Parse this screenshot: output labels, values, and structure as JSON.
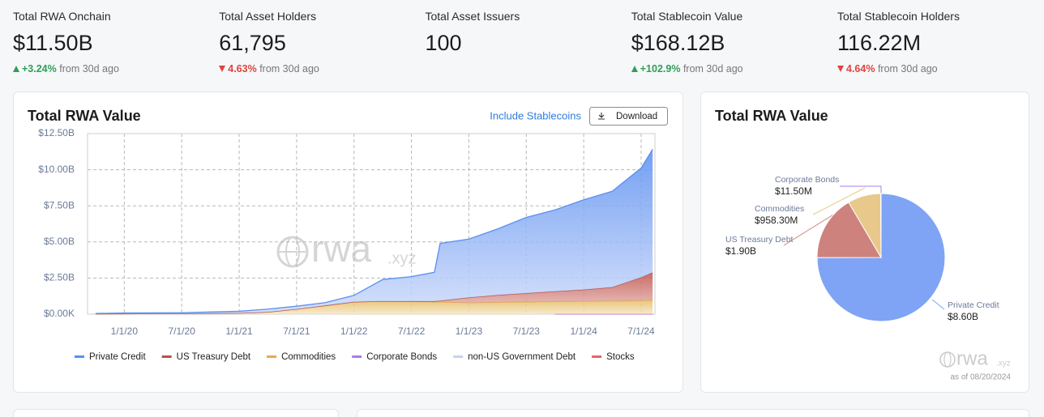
{
  "stats": [
    {
      "label": "Total RWA Onchain",
      "value": "$11.50B",
      "change": "+3.24%",
      "direction": "up",
      "note": "from 30d ago"
    },
    {
      "label": "Total Asset Holders",
      "value": "61,795",
      "change": "4.63%",
      "direction": "down",
      "note": "from 30d ago"
    },
    {
      "label": "Total Asset Issuers",
      "value": "100"
    },
    {
      "label": "Total Stablecoin Value",
      "value": "$168.12B",
      "change": "+102.9%",
      "direction": "up",
      "note": "from 30d ago"
    },
    {
      "label": "Total Stablecoin Holders",
      "value": "116.22M",
      "change": "4.64%",
      "direction": "down",
      "note": "from 30d ago"
    }
  ],
  "controls": {
    "toggle": "Include Stablecoins",
    "download": "Download"
  },
  "watermark": {
    "main": "rwa",
    "sub": ".xyz"
  },
  "as_of": "as of 08/20/2024",
  "chart_data": [
    {
      "type": "area",
      "stacked": true,
      "title": "Total RWA Value",
      "grid": true,
      "x": [
        2019.75,
        2020,
        2020.25,
        2020.5,
        2020.75,
        2021,
        2021.25,
        2021.5,
        2021.75,
        2022,
        2022.25,
        2022.5,
        2022.7,
        2022.75,
        2023,
        2023.25,
        2023.5,
        2023.75,
        2024,
        2024.25,
        2024.5,
        2024.6
      ],
      "xlim": [
        2019.68,
        2024.62
      ],
      "xticks": [
        {
          "value": 2020,
          "label": "1/1/20"
        },
        {
          "value": 2020.5,
          "label": "7/1/20"
        },
        {
          "value": 2021,
          "label": "1/1/21"
        },
        {
          "value": 2021.5,
          "label": "7/1/21"
        },
        {
          "value": 2022,
          "label": "1/1/22"
        },
        {
          "value": 2022.5,
          "label": "7/1/22"
        },
        {
          "value": 2023,
          "label": "1/1/23"
        },
        {
          "value": 2023.5,
          "label": "7/1/23"
        },
        {
          "value": 2024,
          "label": "1/1/24"
        },
        {
          "value": 2024.5,
          "label": "7/1/24"
        }
      ],
      "ylim": [
        0,
        12.5
      ],
      "yticks": [
        {
          "value": 0,
          "label": "$0.00K"
        },
        {
          "value": 2.5,
          "label": "$2.50B"
        },
        {
          "value": 5,
          "label": "$5.00B"
        },
        {
          "value": 7.5,
          "label": "$7.50B"
        },
        {
          "value": 10,
          "label": "$10.00B"
        },
        {
          "value": 12.5,
          "label": "$12.50B"
        }
      ],
      "series": [
        {
          "name": "Private Credit",
          "color": "#5b8ff0",
          "values": [
            0.03,
            0.05,
            0.05,
            0.05,
            0.09,
            0.12,
            0.2,
            0.2,
            0.2,
            0.45,
            1.5,
            1.7,
            2.0,
            3.97,
            4.05,
            4.58,
            5.25,
            5.64,
            6.22,
            6.65,
            7.57,
            8.54
          ]
        },
        {
          "name": "US Treasury Debt",
          "color": "#b9504a",
          "values": [
            0,
            0,
            0,
            0,
            0,
            0,
            0,
            0,
            0,
            0,
            0,
            0.02,
            0.05,
            0.08,
            0.35,
            0.5,
            0.6,
            0.7,
            0.8,
            0.95,
            1.6,
            1.9
          ]
        },
        {
          "name": "Commodities",
          "color": "#dfae4f",
          "values": [
            0.02,
            0.03,
            0.04,
            0.05,
            0.06,
            0.08,
            0.15,
            0.35,
            0.6,
            0.85,
            0.9,
            0.88,
            0.85,
            0.85,
            0.8,
            0.82,
            0.85,
            0.86,
            0.88,
            0.9,
            0.93,
            0.96
          ]
        },
        {
          "name": "Corporate Bonds",
          "color": "#a97de8",
          "values": [
            null,
            null,
            null,
            null,
            null,
            null,
            null,
            null,
            null,
            null,
            null,
            null,
            null,
            null,
            null,
            null,
            null,
            0.0115,
            0.0115,
            0.0115,
            0.0115,
            0.0115
          ]
        },
        {
          "name": "non-US Government Debt",
          "color": "#c6d3ee",
          "values": [
            null,
            null,
            null,
            null,
            null,
            null,
            null,
            null,
            null,
            null,
            null,
            null,
            null,
            null,
            null,
            null,
            null,
            null,
            null,
            null,
            null,
            null
          ]
        },
        {
          "name": "Stocks",
          "color": "#e96363",
          "values": [
            null,
            null,
            null,
            null,
            null,
            null,
            null,
            null,
            null,
            null,
            null,
            null,
            null,
            null,
            null,
            null,
            null,
            0.005,
            0.005,
            0.005,
            0.005,
            0.005
          ]
        }
      ]
    },
    {
      "type": "pie",
      "title": "Total RWA Value",
      "categories": [
        "Private Credit",
        "US Treasury Debt",
        "Commodities",
        "Corporate Bonds"
      ],
      "values": [
        8.6,
        1.9,
        0.9583,
        0.0115
      ],
      "value_labels": [
        "$8.60B",
        "$1.90B",
        "$958.30M",
        "$11.50M"
      ],
      "colors": [
        "#7fa3f5",
        "#cd827d",
        "#e8c98b",
        "#a97de8"
      ]
    }
  ]
}
